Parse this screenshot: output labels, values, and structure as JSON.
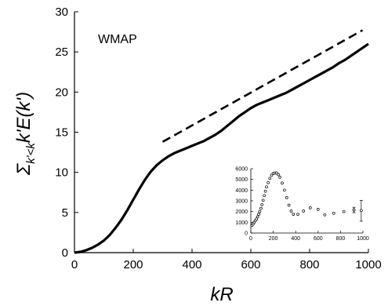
{
  "chart_data": {
    "type": "line",
    "annotation": "WMAP",
    "xlabel": "kR",
    "ylabel": {
      "sigma": "Σ",
      "sub": "k'<k",
      "expr": "k'E(k')"
    },
    "xlim": [
      0,
      1000
    ],
    "ylim": [
      0,
      30
    ],
    "xticks": [
      "0",
      "200",
      "400",
      "600",
      "800",
      "1000"
    ],
    "yticks": [
      "0",
      "5",
      "10",
      "15",
      "20",
      "25",
      "30"
    ],
    "grid": false,
    "series": [
      {
        "style": "solid",
        "color": "#000000",
        "x": [
          0,
          20,
          40,
          60,
          80,
          100,
          120,
          140,
          160,
          180,
          200,
          220,
          240,
          260,
          280,
          300,
          320,
          340,
          360,
          380,
          400,
          420,
          440,
          460,
          480,
          500,
          520,
          540,
          560,
          580,
          600,
          620,
          640,
          660,
          680,
          700,
          720,
          740,
          760,
          780,
          800,
          820,
          840,
          860,
          880,
          900,
          920,
          940,
          960,
          980,
          1000
        ],
        "y": [
          0,
          0.1,
          0.3,
          0.6,
          1.0,
          1.5,
          2.2,
          3.1,
          4.1,
          5.3,
          6.6,
          7.9,
          9.1,
          10.1,
          10.9,
          11.5,
          12.0,
          12.4,
          12.7,
          13.0,
          13.3,
          13.6,
          13.9,
          14.3,
          14.7,
          15.2,
          15.8,
          16.4,
          17.0,
          17.5,
          18.0,
          18.4,
          18.7,
          19.0,
          19.3,
          19.6,
          19.9,
          20.3,
          20.7,
          21.1,
          21.5,
          21.9,
          22.3,
          22.7,
          23.1,
          23.6,
          24.0,
          24.5,
          25.0,
          25.5,
          26.0
        ]
      },
      {
        "style": "dashed",
        "color": "#000000",
        "x": [
          300,
          980
        ],
        "y": [
          13.8,
          27.7
        ]
      }
    ],
    "inset": {
      "type": "scatter",
      "xlim": [
        0,
        1000
      ],
      "ylim": [
        0,
        6000
      ],
      "xticks": [
        "0",
        "200",
        "400",
        "600",
        "800",
        "1000"
      ],
      "yticks": [
        "0",
        "1000",
        "2000",
        "3000",
        "4000",
        "5000",
        "6000"
      ],
      "points": [
        {
          "x": 10,
          "y": 700
        },
        {
          "x": 20,
          "y": 850
        },
        {
          "x": 30,
          "y": 1000
        },
        {
          "x": 40,
          "y": 1150
        },
        {
          "x": 50,
          "y": 1300
        },
        {
          "x": 60,
          "y": 1500
        },
        {
          "x": 70,
          "y": 1750
        },
        {
          "x": 80,
          "y": 2000
        },
        {
          "x": 90,
          "y": 2300
        },
        {
          "x": 100,
          "y": 2650
        },
        {
          "x": 110,
          "y": 3050
        },
        {
          "x": 120,
          "y": 3500
        },
        {
          "x": 130,
          "y": 3900
        },
        {
          "x": 140,
          "y": 4300
        },
        {
          "x": 155,
          "y": 4700
        },
        {
          "x": 170,
          "y": 5100
        },
        {
          "x": 185,
          "y": 5400
        },
        {
          "x": 200,
          "y": 5550
        },
        {
          "x": 215,
          "y": 5600
        },
        {
          "x": 230,
          "y": 5600
        },
        {
          "x": 245,
          "y": 5450
        },
        {
          "x": 260,
          "y": 5200
        },
        {
          "x": 280,
          "y": 4650
        },
        {
          "x": 300,
          "y": 4000
        },
        {
          "x": 320,
          "y": 3300
        },
        {
          "x": 340,
          "y": 2600
        },
        {
          "x": 360,
          "y": 2050
        },
        {
          "x": 380,
          "y": 1750
        },
        {
          "x": 420,
          "y": 1750
        },
        {
          "x": 470,
          "y": 2050
        },
        {
          "x": 530,
          "y": 2350
        },
        {
          "x": 600,
          "y": 2200
        },
        {
          "x": 660,
          "y": 1700
        },
        {
          "x": 740,
          "y": 1850
        },
        {
          "x": 830,
          "y": 2000
        },
        {
          "x": 920,
          "y": 2150
        }
      ],
      "errorbars": [
        {
          "x": 920,
          "y": 2150,
          "lo": 1900,
          "hi": 2400
        },
        {
          "x": 985,
          "y": 2100,
          "lo": 1100,
          "hi": 3050
        }
      ]
    }
  }
}
